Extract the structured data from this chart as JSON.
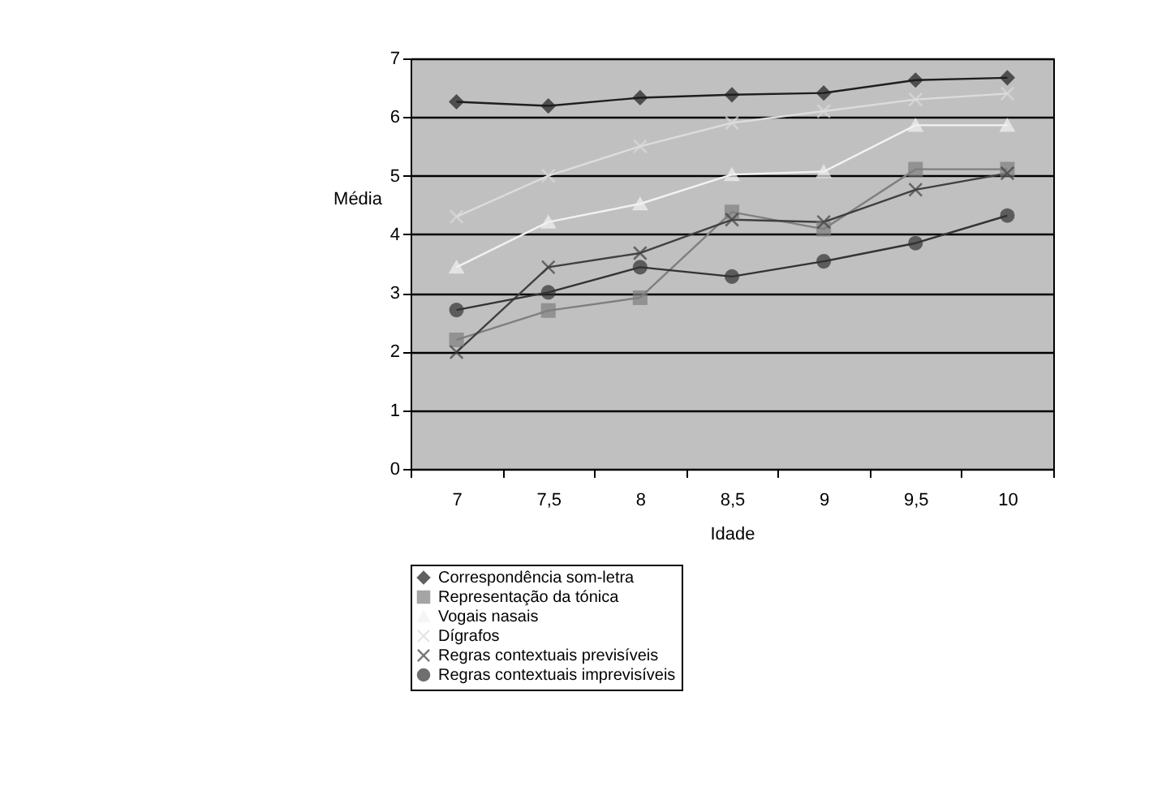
{
  "chart_data": {
    "type": "line",
    "xlabel": "Idade",
    "ylabel": "Média",
    "categories": [
      "7",
      "7,5",
      "8",
      "8,5",
      "9",
      "9,5",
      "10"
    ],
    "ylim": [
      0,
      7
    ],
    "yticks": [
      0,
      1,
      2,
      3,
      4,
      5,
      6,
      7
    ],
    "grid": "y",
    "legend": "bottom",
    "series": [
      {
        "name": "Correspondência som-letra",
        "color": "#1e1e1e",
        "marker": "diamond",
        "values": [
          6.26,
          6.19,
          6.33,
          6.38,
          6.41,
          6.63,
          6.67
        ]
      },
      {
        "name": "Representação da tónica",
        "color": "#7f7f7f",
        "marker": "square",
        "values": [
          2.2,
          2.7,
          2.92,
          4.38,
          4.09,
          5.11,
          5.11
        ]
      },
      {
        "name": "Vogais nasais",
        "color": "#f2f2f2",
        "marker": "triangle",
        "values": [
          3.44,
          4.21,
          4.52,
          5.02,
          5.07,
          5.86,
          5.86
        ]
      },
      {
        "name": "Dígrafos",
        "color": "#dcdcdc",
        "marker": "cross",
        "values": [
          4.3,
          5.0,
          5.5,
          5.9,
          6.1,
          6.3,
          6.4
        ]
      },
      {
        "name": "Regras contextuais previsíveis",
        "color": "#404040",
        "marker": "cross",
        "values": [
          1.99,
          3.44,
          3.68,
          4.25,
          4.21,
          4.76,
          5.04
        ]
      },
      {
        "name": "Regras contextuais imprevisíveis",
        "color": "#333333",
        "marker": "circle",
        "values": [
          2.71,
          3.01,
          3.44,
          3.28,
          3.54,
          3.85,
          4.32
        ]
      }
    ]
  }
}
